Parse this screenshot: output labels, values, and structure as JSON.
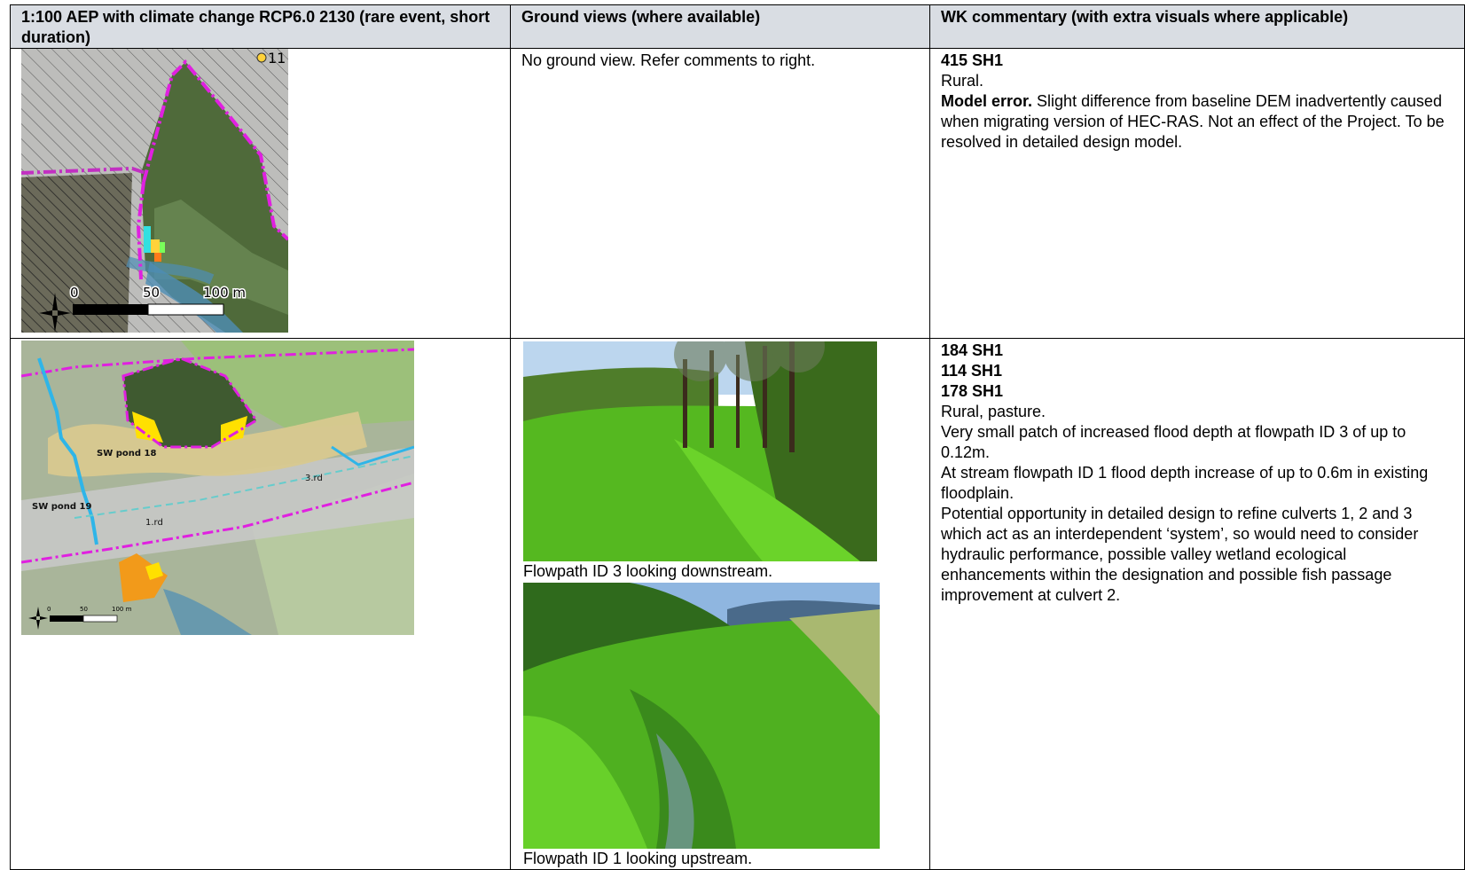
{
  "header": {
    "columns": [
      "1:100 AEP with climate change RCP6.0 2130 (rare event, short duration)",
      "Ground views (where available)",
      "WK commentary (with extra visuals where applicable)"
    ]
  },
  "rows": [
    {
      "map": {
        "labels": [
          "11",
          "0",
          "50",
          "100 m"
        ]
      },
      "ground": {
        "text": "No ground view. Refer comments to right."
      },
      "commentary": [
        {
          "bold": "415 SH1"
        },
        {
          "text": "Rural."
        },
        {
          "bold": "Model error.",
          "text": "Slight difference from baseline DEM inadvertently caused when migrating version of HEC-RAS. Not an effect of the Project. To be resolved in detailed design model."
        }
      ]
    },
    {
      "map": {
        "labels": [
          "SW pond 18",
          "SW pond 19",
          "3.rd",
          "1.rd",
          "0",
          "50",
          "100 m"
        ]
      },
      "ground": {
        "captions": [
          "Flowpath ID 3 looking downstream.",
          "Flowpath ID 1 looking upstream."
        ]
      },
      "commentary": [
        {
          "bold": "184 SH1"
        },
        {
          "bold": "114 SH1"
        },
        {
          "bold": "178 SH1"
        },
        {
          "text": "Rural, pasture."
        },
        {
          "text": "Very small patch of increased flood depth at flowpath ID 3 of up to 0.12m."
        },
        {
          "text": "At stream flowpath ID 1 flood depth increase of up to 0.6m in existing floodplain."
        },
        {
          "text": "Potential opportunity in detailed design to refine culverts 1, 2 and 3 which act as an interdependent ‘system’, so would need to consider hydraulic performance, possible valley wetland ecological enhancements within the designation and possible fish passage improvement at culvert 2."
        }
      ]
    }
  ]
}
